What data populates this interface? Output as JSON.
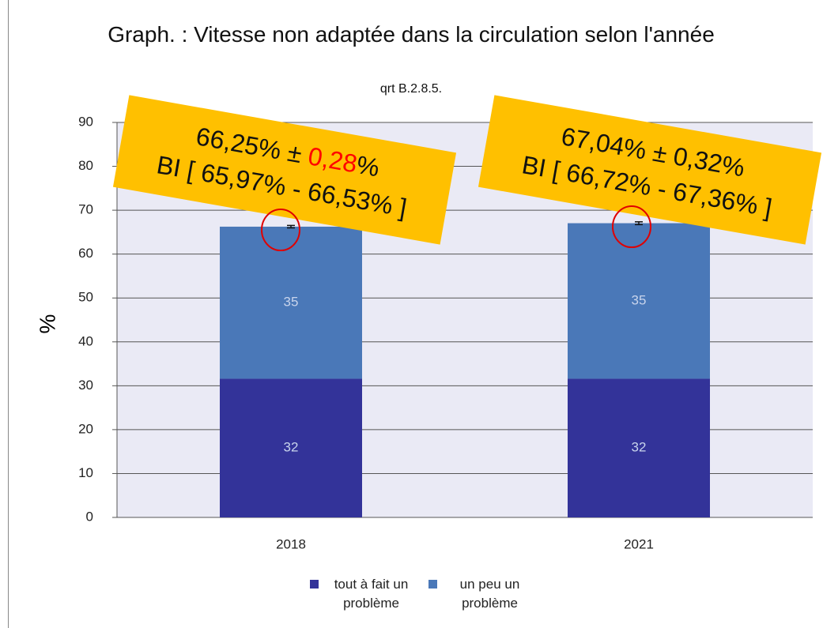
{
  "chart_data": {
    "type": "stacked_bar",
    "title": "Graph. : Vitesse non adaptée dans la circulation selon l'année",
    "subtitle": "qrt B.2.8.5.",
    "y_label": "%",
    "categories": [
      "2018",
      "2021"
    ],
    "series": [
      {
        "name": "tout à fait un problème",
        "color": "#333399",
        "values": [
          31.6,
          31.6
        ],
        "value_labels": [
          "32",
          "32"
        ]
      },
      {
        "name": "un peu un problème",
        "color": "#4a78b8",
        "values": [
          34.65,
          35.44
        ],
        "value_labels": [
          "35",
          "35"
        ],
        "errors": [
          0.28,
          0.32
        ]
      }
    ],
    "ylim": [
      0,
      90
    ],
    "yticks": [
      0,
      10,
      20,
      30,
      40,
      50,
      60,
      70,
      80,
      90
    ],
    "grid": true,
    "annotations": [
      {
        "line1": "66,25% ±",
        "line1_highlight": "0,28",
        "line1_end": "%",
        "line2": "BI [ 65,97% - 66,53% ]"
      },
      {
        "line1": "67,04% ± 0,32%",
        "line2": "BI [ 66,72% - 67,36% ]"
      }
    ]
  }
}
